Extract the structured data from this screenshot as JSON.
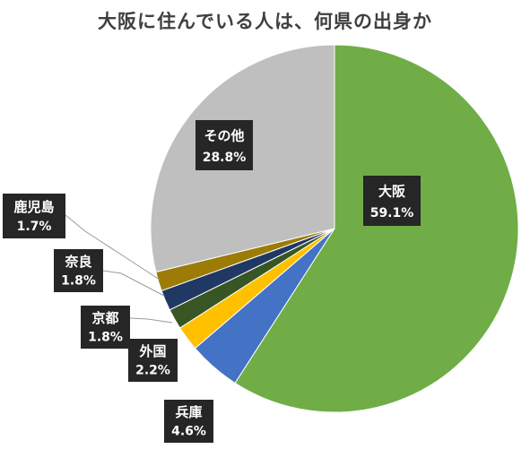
{
  "chart_data": {
    "type": "pie",
    "title": "大阪に住んでいる人は、何県の出身か",
    "slices": [
      {
        "label": "大阪",
        "value": 59.1,
        "value_label": "59.1%",
        "color": "#70ad47"
      },
      {
        "label": "兵庫",
        "value": 4.6,
        "value_label": "4.6%",
        "color": "#4472c4"
      },
      {
        "label": "外国",
        "value": 2.2,
        "value_label": "2.2%",
        "color": "#ffc000"
      },
      {
        "label": "京都",
        "value": 1.8,
        "value_label": "1.8%",
        "color": "#375623"
      },
      {
        "label": "奈良",
        "value": 1.8,
        "value_label": "1.8%",
        "color": "#203864"
      },
      {
        "label": "鹿児島",
        "value": 1.7,
        "value_label": "1.7%",
        "color": "#9c7b06"
      },
      {
        "label": "その他",
        "value": 28.8,
        "value_label": "28.8%",
        "color": "#bfbfbf"
      }
    ],
    "start": "12 o'clock",
    "direction": "clockwise",
    "legend": "none",
    "data_labels": "category-and-percent"
  }
}
